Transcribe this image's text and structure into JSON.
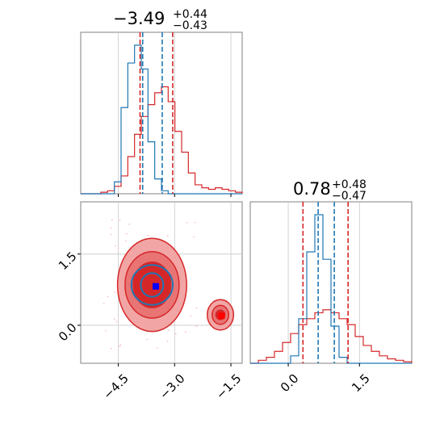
{
  "colors": {
    "hist_red": "#d62728",
    "hist_blue": "#1f77b4",
    "contour_fill_light": "#f2a5a5",
    "contour_fill_mid": "#e87474",
    "contour_fill_dark": "#d62728",
    "blue_marker": "#0000ff",
    "red_marker": "#ff0000",
    "scatter_points": "#f4c4c4"
  },
  "chart_data": {
    "type": "corner",
    "parameters": [
      {
        "title": {
          "median": "−3.49",
          "plus": "+0.44",
          "minus": "−0.43"
        },
        "range": [
          -5.5,
          -1.2
        ],
        "ticks": [
          -4.5,
          -3.0,
          -1.5
        ],
        "tick_labels": [
          "−4.5",
          "−3.0",
          "−1.5"
        ],
        "red_quantiles": [
          -3.92,
          -3.05
        ],
        "blue_quantiles": [
          -3.85,
          -3.33
        ],
        "red_hist": [
          0,
          0,
          0,
          0.01,
          0.02,
          0.05,
          0.12,
          0.25,
          0.4,
          0.52,
          0.6,
          0.68,
          0.72,
          0.62,
          0.42,
          0.28,
          0.14,
          0.06,
          0.04,
          0.03,
          0.04,
          0.03,
          0.02,
          0.01
        ],
        "blue_hist": [
          0,
          0,
          0,
          0,
          0,
          0.08,
          0.58,
          0.88,
          1.0,
          0.84,
          0.35,
          0.1,
          0.02,
          0,
          0,
          0,
          0,
          0,
          0,
          0,
          0,
          0,
          0,
          0
        ],
        "y_max": 1.0
      },
      {
        "title": {
          "median": "0.78",
          "plus": "+0.48",
          "minus": "−0.47"
        },
        "range": [
          -0.8,
          2.6
        ],
        "ticks": [
          0.0,
          1.5
        ],
        "tick_labels": [
          "0.0",
          "1.5"
        ],
        "red_quantiles": [
          0.31,
          1.26
        ],
        "blue_quantiles": [
          0.63,
          0.97
        ],
        "red_hist": [
          0,
          0.02,
          0.04,
          0.08,
          0.14,
          0.2,
          0.26,
          0.3,
          0.34,
          0.36,
          0.34,
          0.3,
          0.26,
          0.18,
          0.12,
          0.08,
          0.05,
          0.03,
          0.02,
          0.01
        ],
        "blue_hist": [
          0,
          0,
          0,
          0,
          0,
          0.05,
          0.3,
          0.75,
          1.0,
          0.7,
          0.25,
          0.04,
          0,
          0,
          0,
          0,
          0,
          0,
          0,
          0
        ],
        "y_max": 1.0
      }
    ],
    "joint": {
      "x_range": [
        -5.5,
        -1.2
      ],
      "y_range": [
        -0.8,
        2.6
      ],
      "contours": {
        "main_center": [
          -3.6,
          0.85
        ],
        "main_radii": [
          [
            0.5,
            0.48
          ],
          [
            0.72,
            0.7
          ],
          [
            0.92,
            0.98
          ]
        ],
        "secondary_center": [
          -1.78,
          0.22
        ],
        "secondary_radii": [
          [
            0.12,
            0.1
          ],
          [
            0.22,
            0.2
          ],
          [
            0.35,
            0.32
          ]
        ],
        "blue_radii": [
          [
            0.3,
            0.25
          ],
          [
            0.55,
            0.42
          ]
        ]
      },
      "markers": [
        {
          "x": -3.5,
          "y": 0.82,
          "color": "blue"
        },
        {
          "x": -1.75,
          "y": 0.2,
          "color": "red"
        }
      ]
    }
  }
}
